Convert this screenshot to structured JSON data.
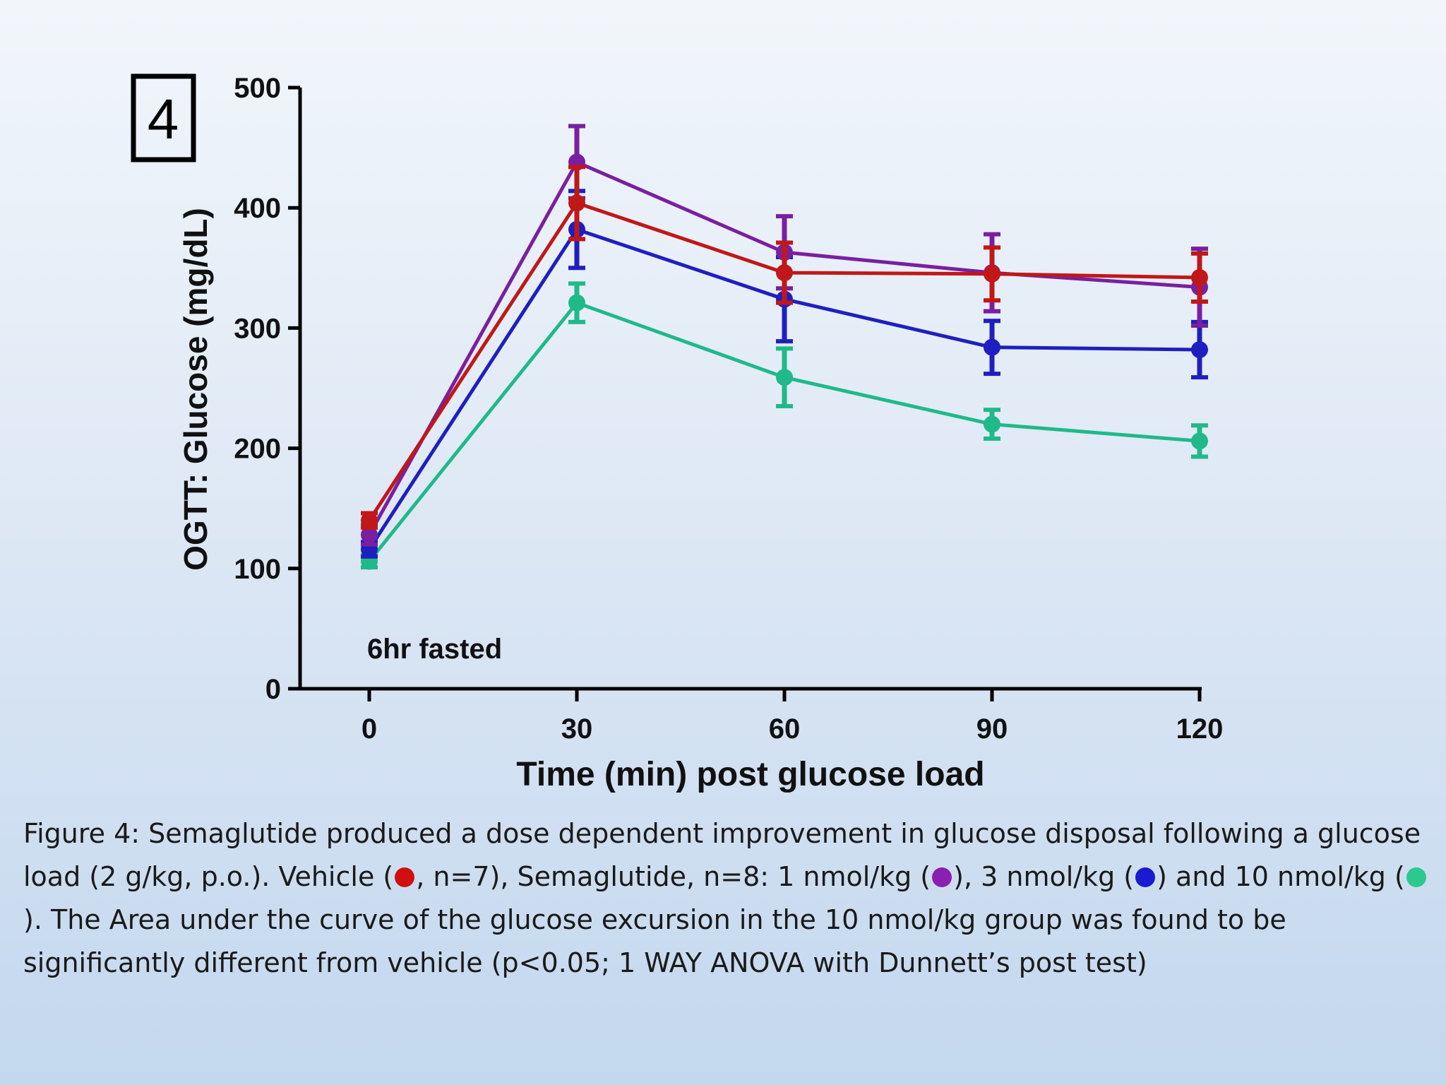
{
  "panel_label": "4",
  "chart_data": {
    "type": "line",
    "xlabel": "Time (min) post glucose load",
    "ylabel": "OGTT: Glucose (mg/dL)",
    "x": [
      0,
      30,
      60,
      90,
      120
    ],
    "x_ticks": [
      "0",
      "30",
      "60",
      "90",
      "120"
    ],
    "xlim": [
      -10,
      120
    ],
    "ylim": [
      0,
      500
    ],
    "y_ticks": [
      "0",
      "100",
      "200",
      "300",
      "400",
      "500"
    ],
    "grid": false,
    "legend": "none",
    "annotation": "6hr fasted",
    "series": [
      {
        "color": "#20b98a",
        "values": [
          106,
          321,
          259,
          220,
          206
        ],
        "errors": [
          5,
          16,
          24,
          12,
          13
        ]
      },
      {
        "color": "#1f1fbf",
        "values": [
          116,
          382,
          324,
          284,
          282
        ],
        "errors": [
          6,
          32,
          35,
          22,
          23
        ]
      },
      {
        "color": "#7a1fa0",
        "values": [
          128,
          438,
          363,
          346,
          334
        ],
        "errors": [
          8,
          30,
          30,
          32,
          32
        ]
      },
      {
        "color": "#c01818",
        "values": [
          140,
          404,
          346,
          345,
          342
        ],
        "errors": [
          6,
          30,
          25,
          22,
          20
        ]
      }
    ]
  },
  "caption": {
    "part1": "Figure 4:  Semaglutide produced a dose dependent improvement in glucose disposal following a glucose load (2 g/kg, p.o.).  Vehicle (",
    "part2": ", n=7), Semaglutide, n=8: 1 nmol/kg (",
    "part3": "), 3 nmol/kg (",
    "part4": ") and 10 nmol/kg (",
    "part5": "). The Area under the curve of the glucose excursion in the 10 nmol/kg group was found to be significantly different from vehicle (p<0.05; 1 WAY ANOVA with Dunnett’s post test)",
    "dot_colors": {
      "vehicle": "#d01010",
      "nmol1": "#8a1fb0",
      "nmol3": "#1a1ad0",
      "nmol10": "#2cc98e"
    }
  }
}
